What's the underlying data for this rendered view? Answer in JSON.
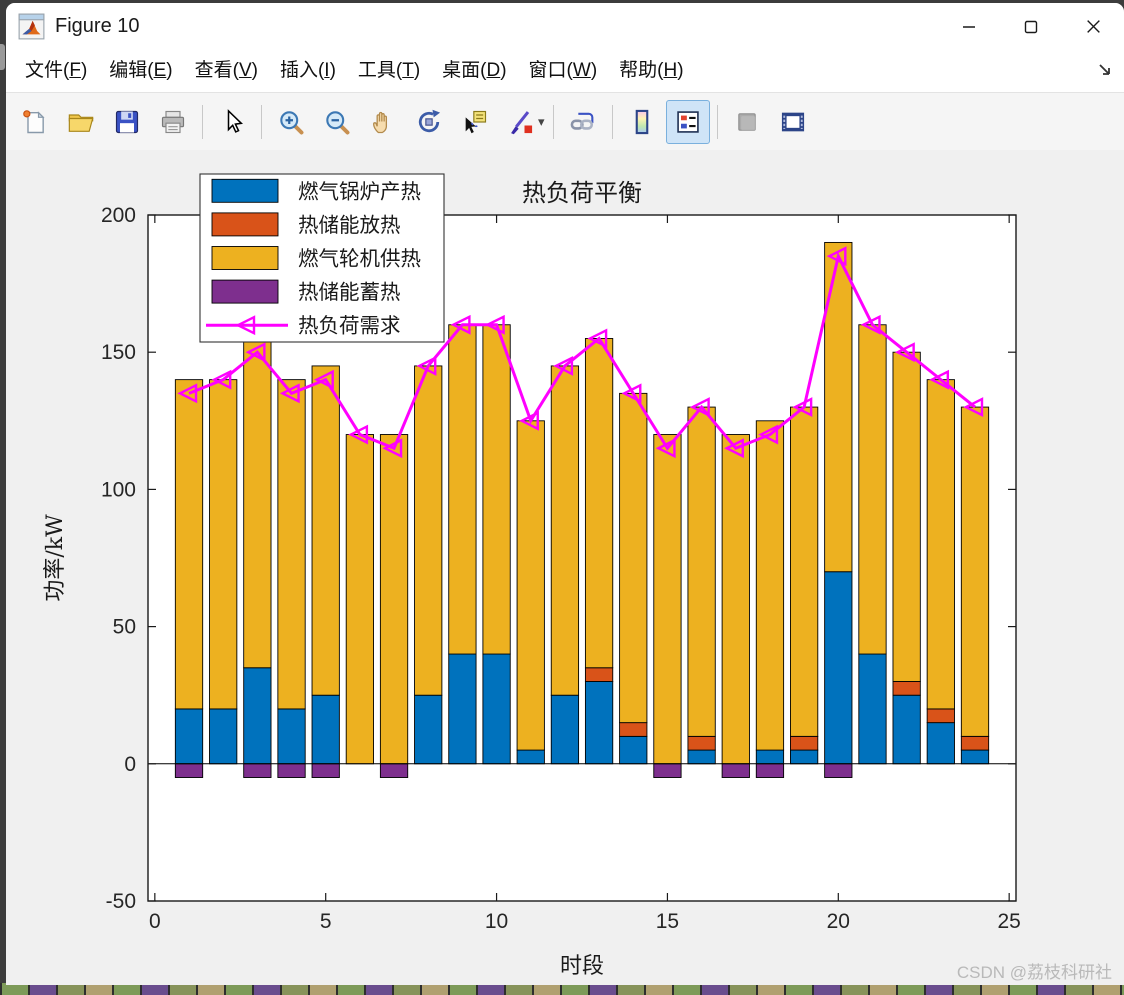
{
  "window": {
    "title": "Figure 10",
    "controls": [
      "minimize",
      "maximize",
      "close"
    ]
  },
  "menu": {
    "items": [
      "文件(F)",
      "编辑(E)",
      "查看(V)",
      "插入(I)",
      "工具(T)",
      "桌面(D)",
      "窗口(W)",
      "帮助(H)"
    ]
  },
  "toolbar": {
    "items": [
      "new-figure",
      "open-file",
      "save-figure",
      "print-figure",
      "pointer",
      "zoom-in",
      "zoom-out",
      "pan",
      "rotate-3d",
      "data-cursor",
      "brush-data",
      "link-plots",
      "insert-colorbar",
      "insert-legend",
      "plot-tools-off",
      "dock-figure"
    ],
    "active_item": "insert-legend"
  },
  "watermark": {
    "text": "CSDN @荔枝科研社"
  },
  "colors": {
    "bar_blue": "#0072BD",
    "bar_orange": "#D95319",
    "bar_yellow": "#EDB120",
    "bar_purple": "#7E2F8E",
    "line_magenta": "#FF00FF",
    "figure_bg": "#F0F0F0",
    "plot_bg": "#FFFFFF"
  },
  "chart_data": {
    "type": "bar",
    "subtype": "stacked-bars-with-line",
    "title": "热负荷平衡",
    "xlabel": "时段",
    "ylabel": "功率/kW",
    "xlim": [
      0,
      25
    ],
    "ylim": [
      -50,
      200
    ],
    "xticks": [
      0,
      5,
      10,
      15,
      20,
      25
    ],
    "yticks": [
      -50,
      0,
      50,
      100,
      150,
      200
    ],
    "grid": false,
    "legend_position": "top-left-inside",
    "categories": [
      1,
      2,
      3,
      4,
      5,
      6,
      7,
      8,
      9,
      10,
      11,
      12,
      13,
      14,
      15,
      16,
      17,
      18,
      19,
      20,
      21,
      22,
      23,
      24
    ],
    "series": [
      {
        "id": "boiler",
        "name": "燃气锅炉产热",
        "type": "bar",
        "color": "#0072BD",
        "values": [
          20,
          20,
          35,
          20,
          25,
          0,
          0,
          25,
          40,
          40,
          5,
          25,
          30,
          10,
          0,
          5,
          0,
          5,
          5,
          70,
          40,
          25,
          15,
          5
        ]
      },
      {
        "id": "storage-discharge",
        "name": "热储能放热",
        "type": "bar",
        "color": "#D95319",
        "values": [
          0,
          0,
          0,
          0,
          0,
          0,
          0,
          0,
          0,
          0,
          0,
          0,
          5,
          5,
          0,
          5,
          0,
          0,
          5,
          0,
          0,
          5,
          5,
          5
        ]
      },
      {
        "id": "turbine",
        "name": "燃气轮机供热",
        "type": "bar",
        "color": "#EDB120",
        "values": [
          120,
          120,
          120,
          120,
          120,
          120,
          120,
          120,
          120,
          120,
          120,
          120,
          120,
          120,
          120,
          120,
          120,
          120,
          120,
          120,
          120,
          120,
          120,
          120
        ]
      },
      {
        "id": "storage-charge",
        "name": "热储能蓄热",
        "type": "bar",
        "color": "#7E2F8E",
        "values": [
          -5,
          0,
          -5,
          -5,
          -5,
          0,
          -5,
          0,
          0,
          0,
          0,
          0,
          0,
          0,
          -5,
          0,
          -5,
          -5,
          0,
          -5,
          0,
          0,
          0,
          0
        ]
      },
      {
        "id": "demand",
        "name": "热负荷需求",
        "type": "line",
        "color": "#FF00FF",
        "marker": "left-triangle",
        "values": [
          135,
          140,
          150,
          135,
          140,
          120,
          115,
          145,
          160,
          160,
          125,
          145,
          155,
          135,
          115,
          130,
          115,
          120,
          130,
          185,
          160,
          150,
          140,
          130
        ]
      }
    ]
  }
}
